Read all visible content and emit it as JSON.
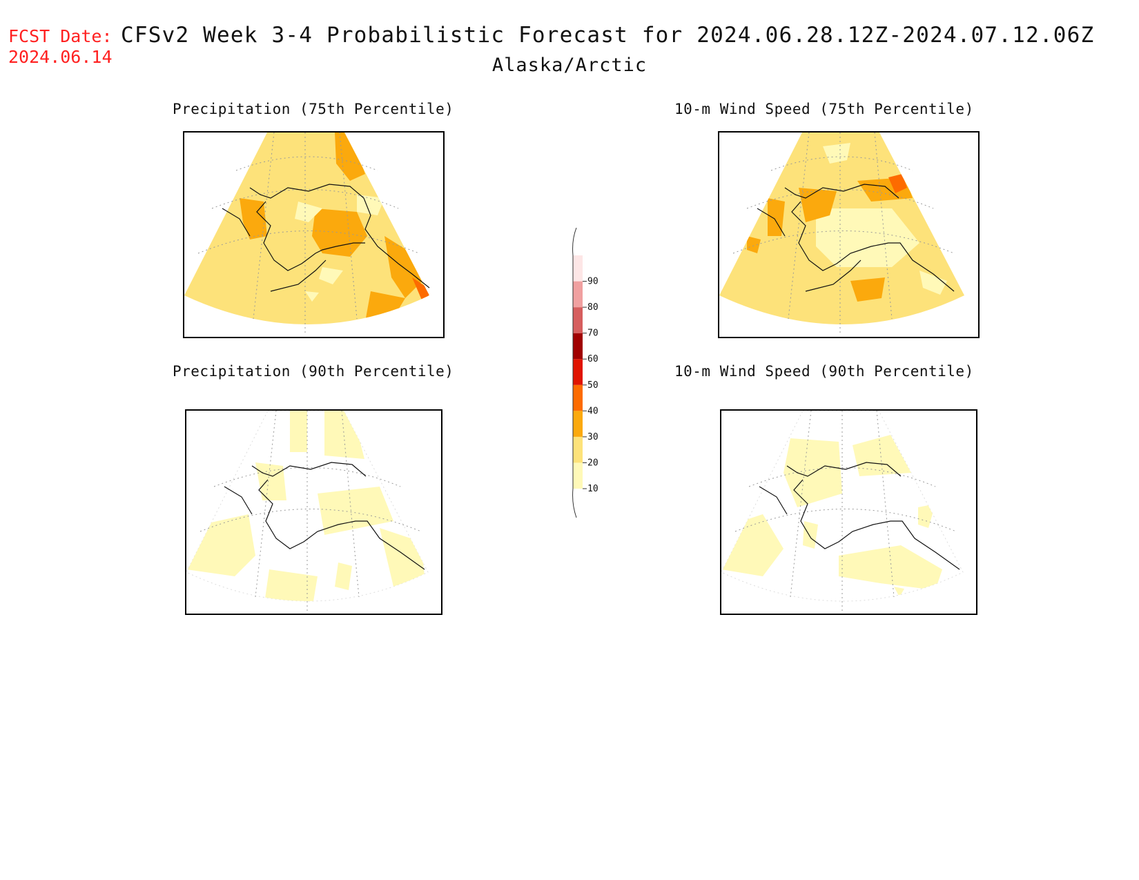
{
  "header": {
    "fcst_label": "FCST Date:",
    "fcst_date": "2024.06.14",
    "title": "CFSv2 Week 3-4 Probabilistic Forecast for 2024.06.28.12Z-2024.07.12.06Z",
    "subtitle": "Alaska/Arctic"
  },
  "panels": [
    {
      "id": "precip75",
      "title": "Precipitation (75th Percentile)"
    },
    {
      "id": "wind75",
      "title": "10-m Wind Speed (75th Percentile)"
    },
    {
      "id": "precip90",
      "title": "Precipitation (90th Percentile)"
    },
    {
      "id": "wind90",
      "title": "10-m Wind Speed (90th Percentile)"
    }
  ],
  "colorbar": {
    "levels": [
      "10",
      "20",
      "30",
      "40",
      "50",
      "60",
      "70",
      "80",
      "90"
    ],
    "colors": [
      "#fff9b8",
      "#fde27a",
      "#fba90d",
      "#fd6b00",
      "#e01400",
      "#a00000",
      "#d65e5e",
      "#f0a0a0",
      "#fde6e6"
    ]
  },
  "fill_colors": {
    "c10": "#fff9b8",
    "c20": "#fde27a",
    "c30": "#fba90d",
    "c40": "#fd6b00",
    "none": "#ffffff"
  }
}
